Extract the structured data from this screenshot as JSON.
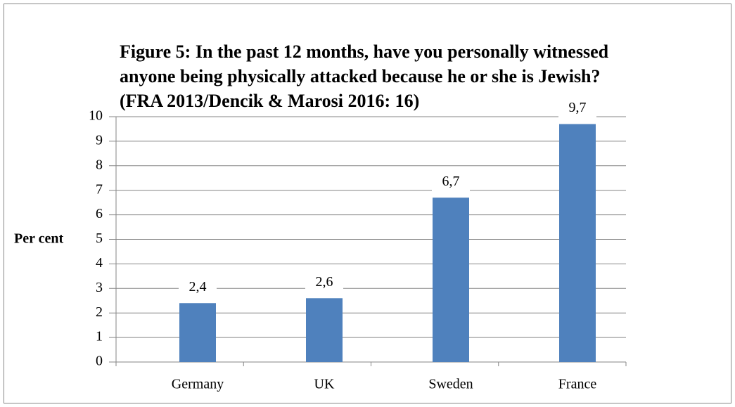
{
  "chart_data": {
    "type": "bar",
    "title": "Figure 5: In the past 12 months, have you personally witnessed anyone being physically attacked because he or she is Jewish? (FRA 2013/Dencik & Marosi 2016: 16)",
    "y_label": "Per cent",
    "categories": [
      "Germany",
      "UK",
      "Sweden",
      "France"
    ],
    "values": [
      2.4,
      2.6,
      6.7,
      9.7
    ],
    "value_labels": [
      "2,4",
      "2,6",
      "6,7",
      "9,7"
    ],
    "color": "#4f81bd",
    "ylim": [
      0,
      10
    ],
    "yticks": [
      0,
      1,
      2,
      3,
      4,
      5,
      6,
      7,
      8,
      9,
      10
    ],
    "grid": true
  }
}
